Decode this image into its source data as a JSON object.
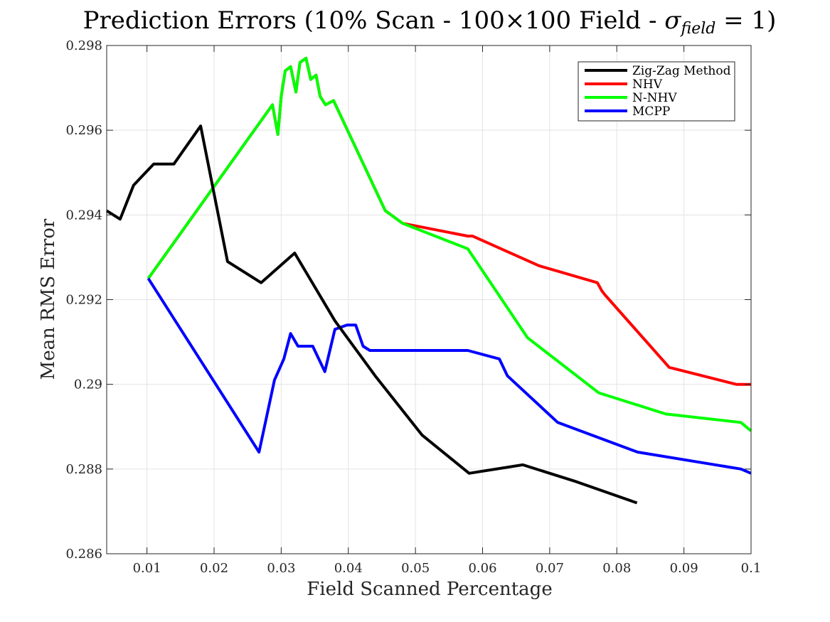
{
  "chart_data": {
    "type": "line",
    "title": "Prediction Errors (10% Scan - 100×100 Field - σ_field = 1)",
    "title_parts": {
      "main": "Prediction Errors (10% Scan - 100×100 Field - ",
      "sigma": "σ",
      "subscript": "field",
      "equals": " = 1)"
    },
    "xlabel": "Field Scanned Percentage",
    "ylabel": "Mean RMS Error",
    "xlim": [
      0.004,
      0.1
    ],
    "ylim": [
      0.286,
      0.298
    ],
    "xticks": [
      0.01,
      0.02,
      0.03,
      0.04,
      0.05,
      0.06,
      0.07,
      0.08,
      0.09,
      0.1
    ],
    "xtick_labels": [
      "0.01",
      "0.02",
      "0.03",
      "0.04",
      "0.05",
      "0.06",
      "0.07",
      "0.08",
      "0.09",
      "0.1"
    ],
    "yticks": [
      0.286,
      0.288,
      0.29,
      0.292,
      0.294,
      0.296,
      0.298
    ],
    "ytick_labels": [
      "0.286",
      "0.288",
      "0.29",
      "0.292",
      "0.294",
      "0.296",
      "0.298"
    ],
    "grid": true,
    "legend_position": "top-right",
    "series": [
      {
        "name": "Zig-Zag Method",
        "color": "#000000",
        "x": [
          0.004,
          0.006,
          0.008,
          0.011,
          0.014,
          0.018,
          0.022,
          0.027,
          0.032,
          0.038,
          0.044,
          0.051,
          0.058,
          0.066,
          0.074,
          0.083
        ],
        "y": [
          0.2941,
          0.2939,
          0.2947,
          0.2952,
          0.2952,
          0.2961,
          0.2929,
          0.2924,
          0.2931,
          0.2915,
          0.2902,
          0.2888,
          0.2879,
          0.2881,
          0.2877,
          0.2872
        ]
      },
      {
        "name": "NHV",
        "color": "#ff0000",
        "x": [
          0.0102,
          0.0287,
          0.0295,
          0.03,
          0.0306,
          0.0314,
          0.0322,
          0.0328,
          0.0337,
          0.0344,
          0.0352,
          0.0358,
          0.0366,
          0.0378,
          0.0455,
          0.0481,
          0.0578,
          0.0585,
          0.0684,
          0.0771,
          0.0778,
          0.0783,
          0.0878,
          0.0978,
          0.1
        ],
        "y": [
          0.2925,
          0.2966,
          0.2959,
          0.2968,
          0.2974,
          0.2975,
          0.2969,
          0.2976,
          0.2977,
          0.2972,
          0.2973,
          0.2968,
          0.2966,
          0.2967,
          0.2941,
          0.2938,
          0.2935,
          0.2935,
          0.2928,
          0.2924,
          0.2922,
          0.2921,
          0.2904,
          0.29,
          0.29
        ]
      },
      {
        "name": "N-NHV",
        "color": "#00ff00",
        "x": [
          0.0102,
          0.0287,
          0.0295,
          0.03,
          0.0306,
          0.0314,
          0.0322,
          0.0328,
          0.0337,
          0.0344,
          0.0352,
          0.0358,
          0.0366,
          0.0378,
          0.0455,
          0.0481,
          0.0578,
          0.0667,
          0.0773,
          0.0873,
          0.0985,
          0.1
        ],
        "y": [
          0.2925,
          0.2966,
          0.2959,
          0.2968,
          0.2974,
          0.2975,
          0.2969,
          0.2976,
          0.2977,
          0.2972,
          0.2973,
          0.2968,
          0.2966,
          0.2967,
          0.2941,
          0.2938,
          0.2932,
          0.2911,
          0.2898,
          0.2893,
          0.2891,
          0.2889
        ]
      },
      {
        "name": "MCPP",
        "color": "#0000ff",
        "x": [
          0.0102,
          0.0267,
          0.029,
          0.0304,
          0.0314,
          0.0325,
          0.0339,
          0.0347,
          0.0365,
          0.038,
          0.0398,
          0.0411,
          0.0422,
          0.0432,
          0.0473,
          0.0578,
          0.0625,
          0.0637,
          0.0712,
          0.0831,
          0.0985,
          0.1
        ],
        "y": [
          0.2925,
          0.2884,
          0.2901,
          0.2906,
          0.2912,
          0.2909,
          0.2909,
          0.2909,
          0.2903,
          0.2913,
          0.2914,
          0.2914,
          0.2909,
          0.2908,
          0.2908,
          0.2908,
          0.2906,
          0.2902,
          0.2891,
          0.2884,
          0.288,
          0.2879
        ]
      }
    ]
  }
}
